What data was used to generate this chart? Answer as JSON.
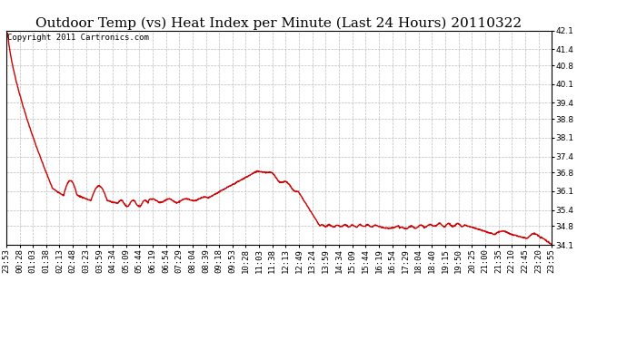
{
  "title": "Outdoor Temp (vs) Heat Index per Minute (Last 24 Hours) 20110322",
  "copyright_text": "Copyright 2011 Cartronics.com",
  "line_color": "#cc0000",
  "background_color": "#ffffff",
  "plot_bg_color": "#ffffff",
  "grid_color": "#bbbbbb",
  "ylim": [
    34.1,
    42.1
  ],
  "yticks": [
    34.1,
    34.8,
    35.4,
    36.1,
    36.8,
    37.4,
    38.1,
    38.8,
    39.4,
    40.1,
    40.8,
    41.4,
    42.1
  ],
  "xtick_labels": [
    "23:53",
    "00:28",
    "01:03",
    "01:38",
    "02:13",
    "02:48",
    "03:23",
    "03:59",
    "04:34",
    "05:09",
    "05:44",
    "06:19",
    "06:54",
    "07:29",
    "08:04",
    "08:39",
    "09:18",
    "09:53",
    "10:28",
    "11:03",
    "11:38",
    "12:13",
    "12:49",
    "13:24",
    "13:59",
    "14:34",
    "15:09",
    "15:44",
    "16:19",
    "16:54",
    "17:29",
    "18:04",
    "18:40",
    "19:15",
    "19:50",
    "20:25",
    "21:00",
    "21:35",
    "22:10",
    "22:45",
    "23:20",
    "23:55"
  ],
  "title_fontsize": 11,
  "tick_fontsize": 6.5,
  "copyright_fontsize": 6.5,
  "line_width": 1.0
}
